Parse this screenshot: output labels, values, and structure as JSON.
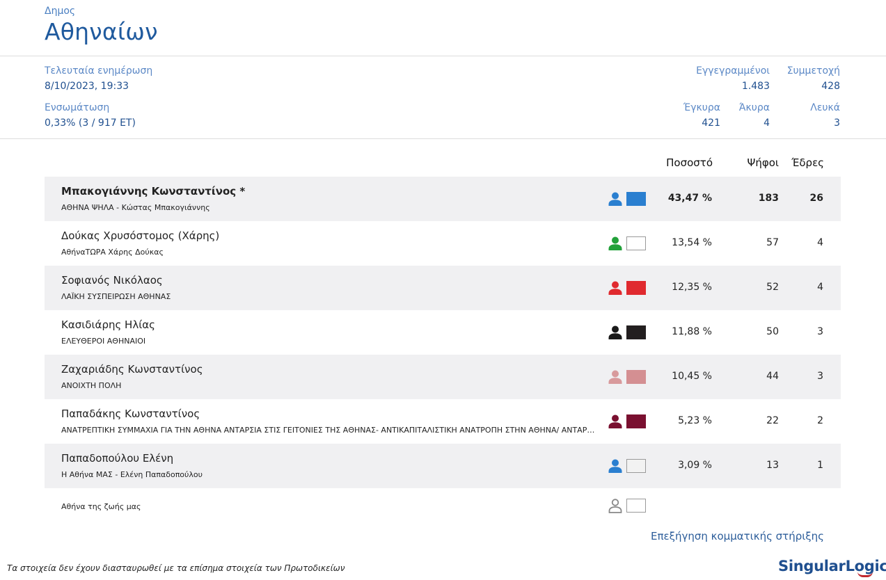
{
  "header": {
    "kind": "Δημος",
    "name": "Αθηναίων"
  },
  "meta": {
    "last_update_label": "Τελευταία ενημέρωση",
    "last_update_value": "8/10/2023, 19:33",
    "integration_label": "Ενσωμάτωση",
    "integration_value": "0,33% (3 / 917 ΕΤ)",
    "registered_label": "Εγγεγραμμένοι",
    "registered_value": "1.483",
    "turnout_label": "Συμμετοχή",
    "turnout_value": "428",
    "valid_label": "Έγκυρα",
    "valid_value": "421",
    "invalid_label": "Άκυρα",
    "invalid_value": "4",
    "blank_label": "Λευκά",
    "blank_value": "3"
  },
  "table": {
    "col_percent": "Ποσοστό",
    "col_votes": "Ψήφοι",
    "col_seats": "Έδρες",
    "rows": [
      {
        "candidate": "Μπακογιάννης Κωνσταντίνος *",
        "party": "ΑΘΗΝΑ ΨΗΛΑ - Κώστας Μπακογιάννης",
        "percent": "43,47 %",
        "votes": "183",
        "seats": "26",
        "person_color": "#2a7fd0",
        "swatch_color": "#2a7fd0"
      },
      {
        "candidate": "Δούκας Χρυσόστομος (Χάρης)",
        "party": "ΑθήναΤΩΡΑ Χάρης Δούκας",
        "percent": "13,54 %",
        "votes": "57",
        "seats": "4",
        "person_color": "#22a13a",
        "swatch_color": "#ffffff"
      },
      {
        "candidate": "Σοφιανός Νικόλαος",
        "party": "ΛΑΪΚΗ ΣΥΣΠΕΙΡΩΣΗ ΑΘΗΝΑΣ",
        "percent": "12,35 %",
        "votes": "52",
        "seats": "4",
        "person_color": "#e02a2f",
        "swatch_color": "#e02a2f"
      },
      {
        "candidate": "Κασιδιάρης Ηλίας",
        "party": "ΕΛΕΥΘΕΡΟΙ ΑΘΗΝΑΙΟΙ",
        "percent": "11,88 %",
        "votes": "50",
        "seats": "3",
        "person_color": "#1a1a1a",
        "swatch_color": "#231f20"
      },
      {
        "candidate": "Ζαχαριάδης Κωνσταντίνος",
        "party": "ΑΝΟΙΧΤΗ ΠΟΛΗ",
        "percent": "10,45 %",
        "votes": "44",
        "seats": "3",
        "person_color": "#d89a9c",
        "swatch_color": "#d48f92"
      },
      {
        "candidate": "Παπαδάκης Κωνσταντίνος",
        "party": "ΑΝΑΤΡΕΠΤΙΚΗ ΣΥΜΜΑΧΙΑ ΓΙΑ ΤΗΝ ΑΘΗΝΑ ΑΝΤΑΡΣΙΑ ΣΤΙΣ ΓΕΙΤΟΝΙΕΣ ΤΗΣ ΑΘΗΝΑΣ- ΑΝΤΙΚΑΠΙΤΑΛΙΣΤΙΚΗ ΑΝΑΤΡΟΠΗ ΣΤΗΝ ΑΘΗΝΑ/ ΑΝΤΑΡΣΥΑ",
        "percent": "5,23 %",
        "votes": "22",
        "seats": "2",
        "person_color": "#7a1030",
        "swatch_color": "#7a1030"
      },
      {
        "candidate": "Παπαδοπούλου Ελένη",
        "party": "Η Αθήνα ΜΑΣ - Ελένη Παπαδοπούλου",
        "percent": "3,09 %",
        "votes": "13",
        "seats": "1",
        "person_color": "#2a7fd0",
        "swatch_color": "#f2f2f2"
      },
      {
        "candidate": "",
        "party": "Αθήνα της ζωής μας",
        "percent": "",
        "votes": "",
        "seats": "",
        "person_color": "outline",
        "swatch_color": "#ffffff"
      }
    ]
  },
  "footer": {
    "link": "Επεξήγηση κομματικής στήριξης",
    "disclaimer": "Τα στοιχεία δεν έχουν διασταυρωθεί με τα επίσημα στοιχεία των Πρωτοδικείων",
    "logo_part1": "Singular",
    "logo_part2": "Logic"
  }
}
